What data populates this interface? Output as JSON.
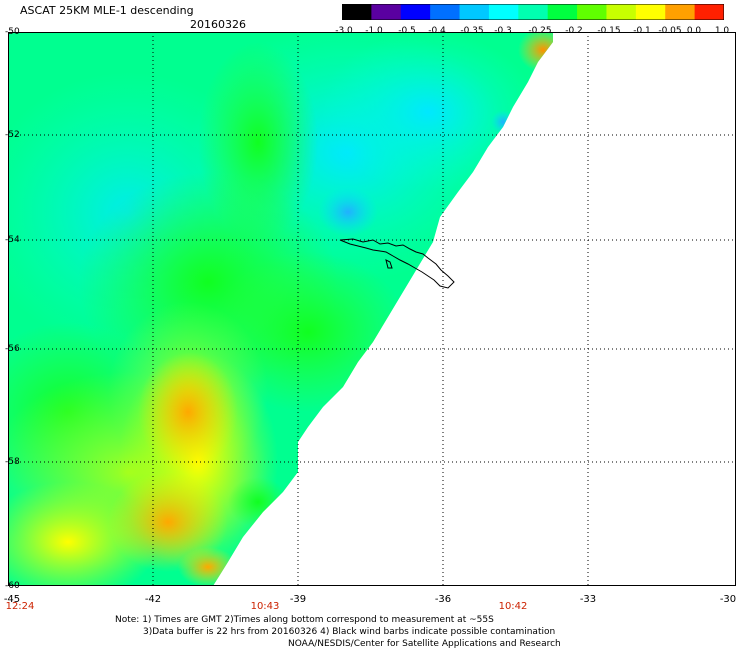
{
  "header": {
    "title": "ASCAT 25KM MLE-1 descending",
    "date": "20160326"
  },
  "colorbar": {
    "labels": [
      "-3.0",
      "-1.0",
      "-0.5",
      "-0.4",
      "-0.35",
      "-0.3",
      "-0.25",
      "-0.2",
      "-0.15",
      "-0.1",
      "-0.05",
      "0.0",
      "1.0"
    ],
    "colors": [
      "#000000",
      "#5a00a0",
      "#0000ff",
      "#0070ff",
      "#00c8ff",
      "#00ffff",
      "#00ffb0",
      "#00ff40",
      "#60ff00",
      "#c8ff00",
      "#ffff00",
      "#ffa000",
      "#ff2000"
    ]
  },
  "axes": {
    "lat_labels": [
      "-50",
      "-52",
      "-54",
      "-56",
      "-58",
      "-60"
    ],
    "lon_labels": [
      "-45",
      "-42",
      "-39",
      "-36",
      "-33",
      "-30"
    ],
    "time_labels": [
      "12:24",
      "10:43",
      "10:42"
    ]
  },
  "notes": {
    "line1": "Note: 1) Times are GMT 2)Times along bottom correspond to measurement at ~55S",
    "line2": "3)Data buffer is 22 hrs from 20160326 4) Black wind barbs indicate possible contamination",
    "line3": "NOAA/NESDIS/Center for Satellite Applications and Research"
  }
}
